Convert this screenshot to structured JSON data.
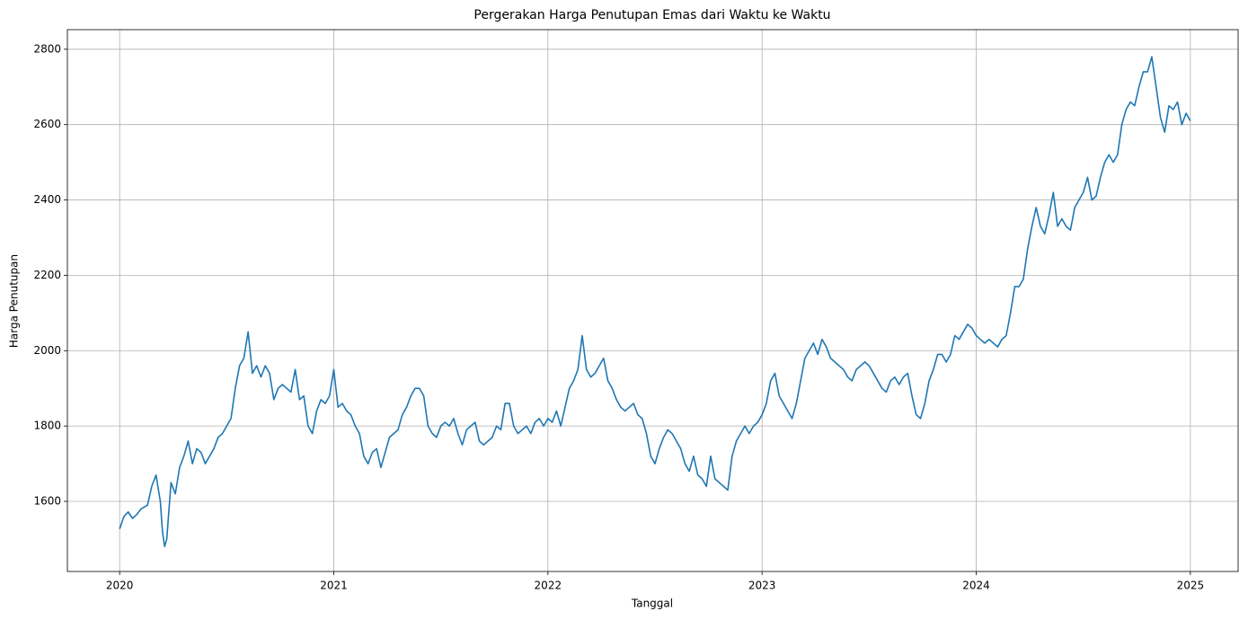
{
  "chart_data": {
    "type": "line",
    "title": "Pergerakan Harga Penutupan Emas dari Waktu ke Waktu",
    "x_label": "Tanggal",
    "y_label": "Harga Penutupan",
    "color": "#1f77b4",
    "grid": true,
    "xlim": [
      2019.756,
      2025.223
    ],
    "ylim": [
      1414,
      2852
    ],
    "xticks": [
      2020,
      2021,
      2022,
      2023,
      2024,
      2025
    ],
    "yticks": [
      1600,
      1800,
      2000,
      2200,
      2400,
      2600,
      2800
    ],
    "x": [
      2020,
      2020.02,
      2020.04,
      2020.06,
      2020.08,
      2020.1,
      2020.13,
      2020.15,
      2020.17,
      2020.19,
      2020.2,
      2020.21,
      2020.22,
      2020.24,
      2020.26,
      2020.28,
      2020.3,
      2020.32,
      2020.34,
      2020.36,
      2020.38,
      2020.4,
      2020.42,
      2020.44,
      2020.46,
      2020.48,
      2020.5,
      2020.52,
      2020.54,
      2020.56,
      2020.58,
      2020.6,
      2020.62,
      2020.64,
      2020.66,
      2020.68,
      2020.7,
      2020.72,
      2020.74,
      2020.76,
      2020.78,
      2020.8,
      2020.82,
      2020.84,
      2020.86,
      2020.88,
      2020.9,
      2020.92,
      2020.94,
      2020.96,
      2020.98,
      2021,
      2021.02,
      2021.04,
      2021.06,
      2021.08,
      2021.1,
      2021.12,
      2021.14,
      2021.16,
      2021.18,
      2021.2,
      2021.22,
      2021.24,
      2021.26,
      2021.28,
      2021.3,
      2021.32,
      2021.34,
      2021.36,
      2021.38,
      2021.4,
      2021.42,
      2021.44,
      2021.46,
      2021.48,
      2021.5,
      2021.52,
      2021.54,
      2021.56,
      2021.58,
      2021.6,
      2021.62,
      2021.64,
      2021.66,
      2021.68,
      2021.7,
      2021.72,
      2021.74,
      2021.76,
      2021.78,
      2021.8,
      2021.82,
      2021.84,
      2021.86,
      2021.88,
      2021.9,
      2021.92,
      2021.94,
      2021.96,
      2021.98,
      2022,
      2022.02,
      2022.04,
      2022.06,
      2022.08,
      2022.1,
      2022.12,
      2022.14,
      2022.16,
      2022.18,
      2022.2,
      2022.22,
      2022.24,
      2022.26,
      2022.28,
      2022.3,
      2022.32,
      2022.34,
      2022.36,
      2022.38,
      2022.4,
      2022.42,
      2022.44,
      2022.46,
      2022.48,
      2022.5,
      2022.52,
      2022.54,
      2022.56,
      2022.58,
      2022.6,
      2022.62,
      2022.64,
      2022.66,
      2022.68,
      2022.7,
      2022.72,
      2022.74,
      2022.76,
      2022.78,
      2022.8,
      2022.82,
      2022.84,
      2022.86,
      2022.88,
      2022.9,
      2022.92,
      2022.94,
      2022.96,
      2022.98,
      2023,
      2023.02,
      2023.04,
      2023.06,
      2023.08,
      2023.1,
      2023.12,
      2023.14,
      2023.16,
      2023.18,
      2023.2,
      2023.22,
      2023.24,
      2023.26,
      2023.28,
      2023.3,
      2023.32,
      2023.34,
      2023.36,
      2023.38,
      2023.4,
      2023.42,
      2023.44,
      2023.46,
      2023.48,
      2023.5,
      2023.52,
      2023.54,
      2023.56,
      2023.58,
      2023.6,
      2023.62,
      2023.64,
      2023.66,
      2023.68,
      2023.7,
      2023.72,
      2023.74,
      2023.76,
      2023.78,
      2023.8,
      2023.82,
      2023.84,
      2023.86,
      2023.88,
      2023.9,
      2023.92,
      2023.94,
      2023.96,
      2023.98,
      2024,
      2024.02,
      2024.04,
      2024.06,
      2024.08,
      2024.1,
      2024.12,
      2024.14,
      2024.16,
      2024.18,
      2024.2,
      2024.22,
      2024.24,
      2024.26,
      2024.28,
      2024.3,
      2024.32,
      2024.34,
      2024.36,
      2024.38,
      2024.4,
      2024.42,
      2024.44,
      2024.46,
      2024.48,
      2024.5,
      2024.52,
      2024.54,
      2024.56,
      2024.58,
      2024.6,
      2024.62,
      2024.64,
      2024.66,
      2024.68,
      2024.7,
      2024.72,
      2024.74,
      2024.76,
      2024.78,
      2024.8,
      2024.82,
      2024.84,
      2024.86,
      2024.88,
      2024.9,
      2024.92,
      2024.94,
      2024.96,
      2024.98,
      2025
    ],
    "values": [
      1527,
      1560,
      1572,
      1555,
      1565,
      1580,
      1590,
      1640,
      1670,
      1600,
      1520,
      1480,
      1500,
      1650,
      1620,
      1690,
      1720,
      1760,
      1700,
      1740,
      1730,
      1700,
      1720,
      1740,
      1770,
      1780,
      1800,
      1820,
      1900,
      1960,
      1980,
      2050,
      1940,
      1960,
      1930,
      1960,
      1940,
      1870,
      1900,
      1910,
      1900,
      1890,
      1950,
      1870,
      1880,
      1800,
      1780,
      1840,
      1870,
      1860,
      1880,
      1950,
      1850,
      1860,
      1840,
      1830,
      1800,
      1780,
      1720,
      1700,
      1730,
      1740,
      1690,
      1730,
      1770,
      1780,
      1790,
      1830,
      1850,
      1880,
      1900,
      1900,
      1880,
      1800,
      1780,
      1770,
      1800,
      1810,
      1800,
      1820,
      1780,
      1750,
      1790,
      1800,
      1810,
      1760,
      1750,
      1760,
      1770,
      1800,
      1790,
      1860,
      1860,
      1800,
      1780,
      1790,
      1800,
      1780,
      1810,
      1820,
      1800,
      1820,
      1810,
      1840,
      1800,
      1850,
      1900,
      1920,
      1950,
      2040,
      1950,
      1930,
      1940,
      1960,
      1980,
      1920,
      1900,
      1870,
      1850,
      1840,
      1850,
      1860,
      1830,
      1820,
      1780,
      1720,
      1700,
      1740,
      1770,
      1790,
      1780,
      1760,
      1740,
      1700,
      1680,
      1720,
      1670,
      1660,
      1640,
      1720,
      1660,
      1650,
      1640,
      1630,
      1720,
      1760,
      1780,
      1800,
      1780,
      1800,
      1810,
      1830,
      1860,
      1920,
      1940,
      1880,
      1860,
      1840,
      1820,
      1860,
      1920,
      1980,
      2000,
      2020,
      1990,
      2030,
      2010,
      1980,
      1970,
      1960,
      1950,
      1930,
      1920,
      1950,
      1960,
      1970,
      1960,
      1940,
      1920,
      1900,
      1890,
      1920,
      1930,
      1910,
      1930,
      1940,
      1880,
      1830,
      1820,
      1860,
      1920,
      1950,
      1990,
      1990,
      1970,
      1990,
      2040,
      2030,
      2050,
      2070,
      2060,
      2040,
      2030,
      2020,
      2030,
      2020,
      2010,
      2030,
      2040,
      2100,
      2170,
      2170,
      2190,
      2270,
      2330,
      2380,
      2330,
      2310,
      2360,
      2420,
      2330,
      2350,
      2330,
      2320,
      2380,
      2400,
      2420,
      2460,
      2400,
      2410,
      2460,
      2500,
      2520,
      2500,
      2520,
      2600,
      2640,
      2660,
      2650,
      2700,
      2740,
      2740,
      2780,
      2700,
      2620,
      2580,
      2650,
      2640,
      2660,
      2600,
      2630,
      2610
    ]
  }
}
